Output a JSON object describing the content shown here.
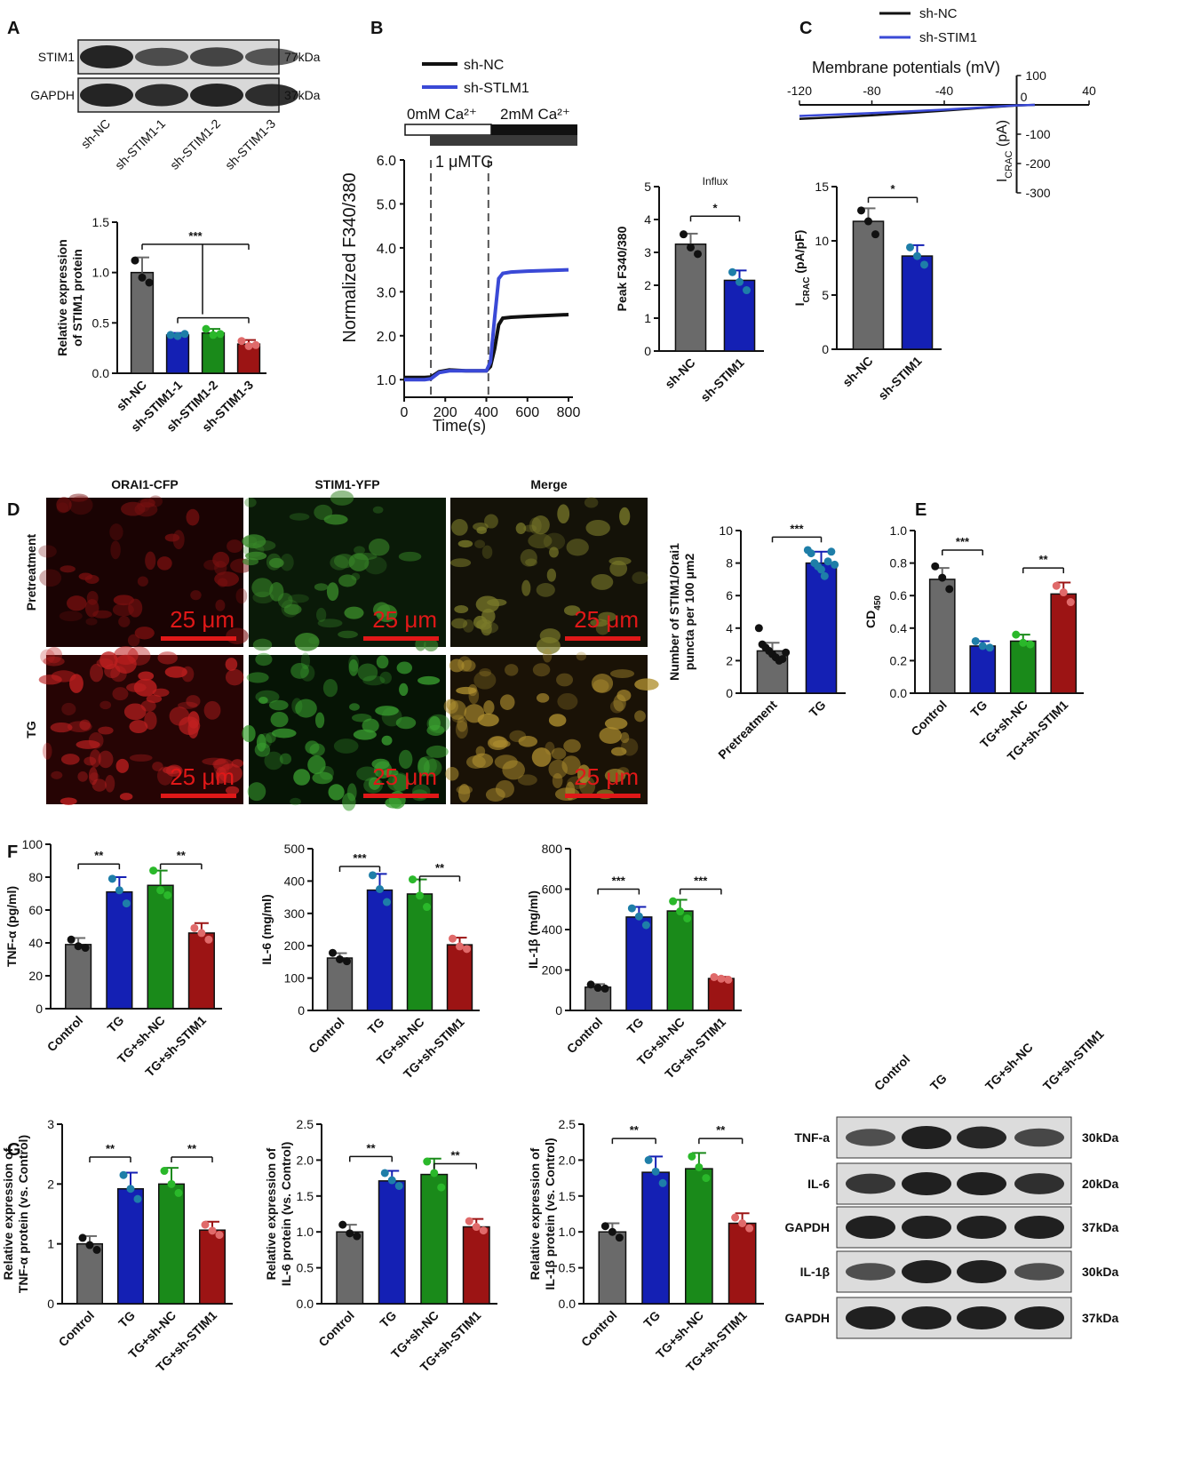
{
  "panels": {
    "A": {
      "letter": "A",
      "blot": {
        "rows": [
          {
            "label": "STIM1",
            "mw": "77kDa",
            "intensity": [
              1.0,
              0.75,
              0.8,
              0.7
            ]
          },
          {
            "label": "GAPDH",
            "mw": "37kDa",
            "intensity": [
              1.0,
              0.95,
              1.0,
              0.95
            ]
          }
        ],
        "lanes": [
          "sh-NC",
          "sh-STIM1-1",
          "sh-STIM1-2",
          "sh-STIM1-3"
        ]
      }
    },
    "B": {
      "letter": "B"
    },
    "C": {
      "letter": "C"
    },
    "D": {
      "letter": "D",
      "columns": [
        "ORAI1-CFP",
        "STIM1-YFP",
        "Merge"
      ],
      "rows": [
        "Pretreatment",
        "TG"
      ],
      "scalebar": "25 μm"
    },
    "E": {
      "letter": "E"
    },
    "F": {
      "letter": "F"
    },
    "G": {
      "letter": "G",
      "blot": {
        "lanes": [
          "Control",
          "TG",
          "TG+sh-NC",
          "TG+sh-STIM1"
        ],
        "rows": [
          {
            "label": "TNF-a",
            "mw": "30kDa",
            "intensity": [
              0.7,
              1.0,
              0.95,
              0.75
            ]
          },
          {
            "label": "IL-6",
            "mw": "20kDa",
            "intensity": [
              0.85,
              1.0,
              1.0,
              0.9
            ]
          },
          {
            "label": "GAPDH",
            "mw": "37kDa",
            "intensity": [
              1.0,
              1.0,
              1.0,
              1.0
            ]
          },
          {
            "label": "IL-1β",
            "mw": "30kDa",
            "intensity": [
              0.7,
              1.0,
              1.0,
              0.7
            ]
          },
          {
            "label": "GAPDH",
            "mw": "37kDa",
            "intensity": [
              1.0,
              1.0,
              1.0,
              1.0
            ]
          }
        ]
      }
    }
  },
  "colors": {
    "gray": "#6a6a6a",
    "blue": "#1420b4",
    "green": "#1a8a1a",
    "red": "#9c1414",
    "dot_black": "#111111",
    "dot_blue": "#1e7ea8",
    "dot_green": "#2ab82a",
    "dot_red": "#e06a6a",
    "trace_blue": "#3a49d6",
    "trace_black": "#111111"
  },
  "chart_data": [
    {
      "id": "A-bar",
      "type": "bar",
      "categories": [
        "sh-NC",
        "sh-STIM1-1",
        "sh-STIM1-2",
        "sh-STIM1-3"
      ],
      "values": [
        1.0,
        0.38,
        0.4,
        0.29
      ],
      "errors": [
        0.15,
        0.02,
        0.04,
        0.04
      ],
      "points": [
        [
          1.12,
          0.95,
          0.9
        ],
        [
          0.38,
          0.37,
          0.39
        ],
        [
          0.44,
          0.38,
          0.39
        ],
        [
          0.32,
          0.27,
          0.28
        ]
      ],
      "colors": [
        "gray",
        "blue",
        "green",
        "red"
      ],
      "ylabel": [
        "Relative expression",
        "of STIM1 protein"
      ],
      "ylim": [
        0,
        1.5
      ],
      "yticks": [
        0,
        0.5,
        1.0,
        1.5
      ],
      "ytick_labels": [
        "0.0",
        "0.5",
        "1.0",
        "1.5"
      ],
      "sig": [
        {
          "from": 0,
          "to": 3,
          "label": "***",
          "y": 1.28
        },
        {
          "from": 1,
          "to": 3,
          "label": "",
          "y": 0.55
        }
      ]
    },
    {
      "id": "B-trace",
      "type": "line",
      "xlabel": "Time(s)",
      "ylabel": "Normalized F340/380",
      "xlim": [
        0,
        800
      ],
      "ylim": [
        0.6,
        6.0
      ],
      "xticks": [
        0,
        200,
        400,
        600,
        800
      ],
      "yticks": [
        1.0,
        2.0,
        3.0,
        4.0,
        5.0,
        6.0
      ],
      "ytick_labels": [
        "1.0",
        "2.0",
        "3.0",
        "4.0",
        "5.0",
        "6.0"
      ],
      "vlines": [
        130,
        410
      ],
      "legend": [
        "sh-NC",
        "sh-STLM1"
      ],
      "solution_labels": [
        "0mM Ca²⁺",
        "2mM Ca²⁺"
      ],
      "drug_label": "1 μMTG",
      "series": [
        {
          "name": "sh-NC",
          "color": "trace_black",
          "x": [
            0,
            100,
            130,
            170,
            220,
            300,
            400,
            420,
            440,
            460,
            480,
            520,
            600,
            800
          ],
          "y": [
            1.05,
            1.05,
            1.06,
            1.18,
            1.22,
            1.2,
            1.2,
            1.3,
            1.7,
            2.25,
            2.4,
            2.42,
            2.44,
            2.48
          ]
        },
        {
          "name": "sh-STLM1",
          "color": "trace_blue",
          "x": [
            0,
            100,
            130,
            170,
            220,
            300,
            400,
            420,
            440,
            460,
            480,
            520,
            600,
            800
          ],
          "y": [
            1.0,
            1.0,
            1.02,
            1.16,
            1.2,
            1.2,
            1.2,
            1.4,
            2.4,
            3.3,
            3.42,
            3.45,
            3.47,
            3.5
          ]
        }
      ]
    },
    {
      "id": "B-bar",
      "type": "bar",
      "title": "Influx",
      "categories": [
        "sh-NC",
        "sh-STIM1"
      ],
      "values": [
        3.25,
        2.15
      ],
      "errors": [
        0.32,
        0.3
      ],
      "points": [
        [
          3.55,
          3.15,
          2.95
        ],
        [
          2.4,
          2.1,
          1.85
        ]
      ],
      "colors": [
        "gray",
        "blue"
      ],
      "ylabel": [
        "Peak F340/380"
      ],
      "ylim": [
        0,
        5
      ],
      "yticks": [
        0,
        1,
        2,
        3,
        4,
        5
      ],
      "ytick_labels": [
        "0",
        "1",
        "2",
        "3",
        "4",
        "5"
      ],
      "sig": [
        {
          "from": 0,
          "to": 1,
          "label": "*",
          "y": 4.1
        }
      ]
    },
    {
      "id": "C-iv",
      "type": "line",
      "xlabel": "Membrane potentials (mV)",
      "ylabel_base": "I",
      "ylabel_sub": "CRAC",
      "ylabel_rest": " (pA)",
      "xlim": [
        -120,
        40
      ],
      "ylim": [
        -300,
        100
      ],
      "xticks": [
        -120,
        -80,
        -40,
        0,
        40
      ],
      "yticks": [
        100,
        -100,
        -200,
        -300
      ],
      "legend": [
        "sh-NC",
        "sh-STIM1"
      ],
      "series": [
        {
          "name": "sh-NC",
          "color": "trace_black",
          "x": [
            -120,
            -100,
            -80,
            -60,
            -40,
            -20,
            0,
            10
          ],
          "y": [
            -170,
            -150,
            -128,
            -100,
            -70,
            -38,
            -8,
            0
          ]
        },
        {
          "name": "sh-STIM1",
          "color": "trace_blue",
          "x": [
            -120,
            -100,
            -80,
            -60,
            -40,
            -20,
            0,
            10
          ],
          "y": [
            -135,
            -118,
            -100,
            -80,
            -58,
            -32,
            -6,
            0
          ]
        }
      ]
    },
    {
      "id": "C-bar",
      "type": "bar",
      "categories": [
        "sh-NC",
        "sh-STIM1"
      ],
      "values": [
        11.8,
        8.6
      ],
      "errors": [
        1.2,
        1.0
      ],
      "points": [
        [
          12.8,
          11.8,
          10.6
        ],
        [
          9.4,
          8.6,
          7.8
        ]
      ],
      "colors": [
        "gray",
        "blue"
      ],
      "ylabel_base": "I",
      "ylabel_sub": "CRAC",
      "ylabel_rest": " (pA/pF)",
      "ylim": [
        0,
        15
      ],
      "yticks": [
        0,
        5,
        10,
        15
      ],
      "ytick_labels": [
        "0",
        "5",
        "10",
        "15"
      ],
      "sig": [
        {
          "from": 0,
          "to": 1,
          "label": "*",
          "y": 14.0
        }
      ]
    },
    {
      "id": "D-bar",
      "type": "bar",
      "categories": [
        "Pretreatment",
        "TG"
      ],
      "values": [
        2.6,
        8.0
      ],
      "errors": [
        0.5,
        0.7
      ],
      "points": [
        [
          4.0,
          3.0,
          2.8,
          2.6,
          2.4,
          2.2,
          2.0,
          2.1,
          2.5
        ],
        [
          8.8,
          8.6,
          8.0,
          7.8,
          7.6,
          7.2,
          8.1,
          8.7,
          7.9
        ]
      ],
      "colors": [
        "gray",
        "blue"
      ],
      "ylabel": [
        "Number of STIM1/Orai1",
        "puncta per 100 μm2"
      ],
      "ylim": [
        0,
        10
      ],
      "yticks": [
        0,
        2,
        4,
        6,
        8,
        10
      ],
      "ytick_labels": [
        "0",
        "2",
        "4",
        "6",
        "8",
        "10"
      ],
      "sig": [
        {
          "from": 0,
          "to": 1,
          "label": "***",
          "y": 9.6
        }
      ]
    },
    {
      "id": "E-bar",
      "type": "bar",
      "categories": [
        "Control",
        "TG",
        "TG+sh-NC",
        "TG+sh-STIM1"
      ],
      "values": [
        0.7,
        0.29,
        0.32,
        0.61
      ],
      "errors": [
        0.07,
        0.03,
        0.04,
        0.07
      ],
      "points": [
        [
          0.78,
          0.71,
          0.64
        ],
        [
          0.32,
          0.29,
          0.28
        ],
        [
          0.36,
          0.31,
          0.3
        ],
        [
          0.66,
          0.62,
          0.56
        ]
      ],
      "colors": [
        "gray",
        "blue",
        "green",
        "red"
      ],
      "ylabel_base": "CD",
      "ylabel_sub": "450",
      "ylim": [
        0,
        1.0
      ],
      "yticks": [
        0,
        0.2,
        0.4,
        0.6,
        0.8,
        1.0
      ],
      "ytick_labels": [
        "0.0",
        "0.2",
        "0.4",
        "0.6",
        "0.8",
        "1.0"
      ],
      "sig": [
        {
          "from": 0,
          "to": 1,
          "label": "***",
          "y": 0.88
        },
        {
          "from": 2,
          "to": 3,
          "label": "**",
          "y": 0.77
        }
      ]
    },
    {
      "id": "F1-bar",
      "type": "bar",
      "categories": [
        "Control",
        "TG",
        "TG+sh-NC",
        "TG+sh-STIM1"
      ],
      "values": [
        39,
        71,
        75,
        46
      ],
      "errors": [
        4,
        9,
        9,
        6
      ],
      "points": [
        [
          42,
          38,
          37
        ],
        [
          79,
          72,
          64
        ],
        [
          84,
          72,
          69
        ],
        [
          49,
          46,
          42
        ]
      ],
      "colors": [
        "gray",
        "blue",
        "green",
        "red"
      ],
      "ylabel": [
        "TNF-α (pg/ml)"
      ],
      "ylim": [
        0,
        100
      ],
      "yticks": [
        0,
        20,
        40,
        60,
        80,
        100
      ],
      "ytick_labels": [
        "0",
        "20",
        "40",
        "60",
        "80",
        "100"
      ],
      "sig": [
        {
          "from": 0,
          "to": 1,
          "label": "**",
          "y": 88
        },
        {
          "from": 2,
          "to": 3,
          "label": "**",
          "y": 88
        }
      ]
    },
    {
      "id": "F2-bar",
      "type": "bar",
      "categories": [
        "Control",
        "TG",
        "TG+sh-NC",
        "TG+sh-STIM1"
      ],
      "values": [
        162,
        372,
        360,
        203
      ],
      "errors": [
        15,
        50,
        45,
        22
      ],
      "points": [
        [
          178,
          158,
          152
        ],
        [
          418,
          375,
          335
        ],
        [
          405,
          355,
          320
        ],
        [
          222,
          198,
          190
        ]
      ],
      "colors": [
        "gray",
        "blue",
        "green",
        "red"
      ],
      "ylabel": [
        "IL-6 (mg/ml)"
      ],
      "ylim": [
        0,
        500
      ],
      "yticks": [
        0,
        100,
        200,
        300,
        400,
        500
      ],
      "ytick_labels": [
        "0",
        "100",
        "200",
        "300",
        "400",
        "500"
      ],
      "sig": [
        {
          "from": 0,
          "to": 1,
          "label": "***",
          "y": 445
        },
        {
          "from": 2,
          "to": 3,
          "label": "**",
          "y": 415
        }
      ]
    },
    {
      "id": "F3-bar",
      "type": "bar",
      "categories": [
        "Control",
        "TG",
        "TG+sh-NC",
        "TG+sh-STIM1"
      ],
      "values": [
        115,
        462,
        492,
        158
      ],
      "errors": [
        15,
        50,
        55,
        8
      ],
      "points": [
        [
          128,
          112,
          108
        ],
        [
          505,
          465,
          422
        ],
        [
          540,
          490,
          455
        ],
        [
          165,
          157,
          152
        ]
      ],
      "colors": [
        "gray",
        "blue",
        "green",
        "red"
      ],
      "ylabel": [
        "IL-1β (mg/ml)"
      ],
      "ylim": [
        0,
        800
      ],
      "yticks": [
        0,
        200,
        400,
        600,
        800
      ],
      "ytick_labels": [
        "0",
        "200",
        "400",
        "600",
        "800"
      ],
      "sig": [
        {
          "from": 0,
          "to": 1,
          "label": "***",
          "y": 600
        },
        {
          "from": 2,
          "to": 3,
          "label": "***",
          "y": 600
        }
      ]
    },
    {
      "id": "G1-bar",
      "type": "bar",
      "categories": [
        "Control",
        "TG",
        "TG+sh-NC",
        "TG+sh-STIM1"
      ],
      "values": [
        1.0,
        1.92,
        2.0,
        1.23
      ],
      "errors": [
        0.13,
        0.27,
        0.27,
        0.14
      ],
      "points": [
        [
          1.1,
          0.98,
          0.9
        ],
        [
          2.15,
          1.92,
          1.75
        ],
        [
          2.22,
          2.0,
          1.85
        ],
        [
          1.32,
          1.22,
          1.15
        ]
      ],
      "colors": [
        "gray",
        "blue",
        "green",
        "red"
      ],
      "ylabel": [
        "Relative expression of",
        "TNF-α protein (vs. Control)"
      ],
      "ylim": [
        0,
        3
      ],
      "yticks": [
        0,
        1,
        2,
        3
      ],
      "ytick_labels": [
        "0",
        "1",
        "2",
        "3"
      ],
      "sig": [
        {
          "from": 0,
          "to": 1,
          "label": "**",
          "y": 2.45
        },
        {
          "from": 2,
          "to": 3,
          "label": "**",
          "y": 2.45
        }
      ]
    },
    {
      "id": "G2-bar",
      "type": "bar",
      "categories": [
        "Control",
        "TG",
        "TG+sh-NC",
        "TG+sh-STIM1"
      ],
      "values": [
        1.0,
        1.71,
        1.8,
        1.07
      ],
      "errors": [
        0.1,
        0.14,
        0.22,
        0.11
      ],
      "points": [
        [
          1.1,
          0.98,
          0.94
        ],
        [
          1.82,
          1.72,
          1.64
        ],
        [
          1.98,
          1.82,
          1.62
        ],
        [
          1.15,
          1.07,
          1.02
        ]
      ],
      "colors": [
        "gray",
        "blue",
        "green",
        "red"
      ],
      "ylabel": [
        "Relative expression of",
        "IL-6 protein (vs. Control)"
      ],
      "ylim": [
        0,
        2.5
      ],
      "yticks": [
        0,
        0.5,
        1.0,
        1.5,
        2.0,
        2.5
      ],
      "ytick_labels": [
        "0.0",
        "0.5",
        "1.0",
        "1.5",
        "2.0",
        "2.5"
      ],
      "sig": [
        {
          "from": 0,
          "to": 1,
          "label": "**",
          "y": 2.05
        },
        {
          "from": 2,
          "to": 3,
          "label": "**",
          "y": 1.95
        }
      ]
    },
    {
      "id": "G3-bar",
      "type": "bar",
      "categories": [
        "Control",
        "TG",
        "TG+sh-NC",
        "TG+sh-STIM1"
      ],
      "values": [
        1.0,
        1.83,
        1.88,
        1.12
      ],
      "errors": [
        0.12,
        0.22,
        0.22,
        0.14
      ],
      "points": [
        [
          1.08,
          1.0,
          0.92
        ],
        [
          2.0,
          1.84,
          1.68
        ],
        [
          2.05,
          1.9,
          1.75
        ],
        [
          1.2,
          1.12,
          1.05
        ]
      ],
      "colors": [
        "gray",
        "blue",
        "green",
        "red"
      ],
      "ylabel": [
        "Relative expression of",
        "IL-1β protein (vs. Control)"
      ],
      "ylim": [
        0,
        2.5
      ],
      "yticks": [
        0,
        0.5,
        1.0,
        1.5,
        2.0,
        2.5
      ],
      "ytick_labels": [
        "0.0",
        "0.5",
        "1.0",
        "1.5",
        "2.0",
        "2.5"
      ],
      "sig": [
        {
          "from": 0,
          "to": 1,
          "label": "**",
          "y": 2.3
        },
        {
          "from": 2,
          "to": 3,
          "label": "**",
          "y": 2.3
        }
      ]
    }
  ]
}
